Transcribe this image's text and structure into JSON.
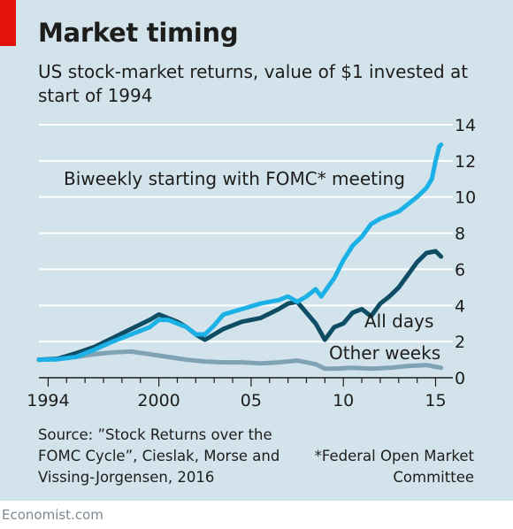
{
  "chart_data": {
    "type": "line",
    "title": "Market timing",
    "subtitle": "US stock-market returns, value of $1 invested at start of 1994",
    "xlim": [
      1993.5,
      2015.6
    ],
    "ylim": [
      0,
      14
    ],
    "y_ticks": [
      0,
      2,
      4,
      6,
      8,
      10,
      12,
      14
    ],
    "x_ticks": [
      {
        "value": 1994,
        "label": "1994"
      },
      {
        "value": 2000,
        "label": "2000"
      },
      {
        "value": 2005,
        "label": "05"
      },
      {
        "value": 2010,
        "label": "10"
      },
      {
        "value": 2015,
        "label": "15"
      }
    ],
    "grid": "horizontal",
    "series": [
      {
        "name": "Other weeks",
        "color": "#7fa3b5",
        "x": [
          1993.5,
          1994.5,
          1995.5,
          1996.5,
          1997.5,
          1998.5,
          1999.5,
          2000.5,
          2001.5,
          2002.5,
          2003.5,
          2004.5,
          2005.5,
          2006.5,
          2007.5,
          2008.5,
          2009.0,
          2009.5,
          2010.5,
          2011.5,
          2012.5,
          2013.5,
          2014.5,
          2015.3
        ],
        "values": [
          1.0,
          1.05,
          1.15,
          1.3,
          1.4,
          1.45,
          1.3,
          1.15,
          1.0,
          0.9,
          0.85,
          0.85,
          0.8,
          0.85,
          0.95,
          0.75,
          0.5,
          0.5,
          0.55,
          0.5,
          0.55,
          0.65,
          0.7,
          0.55
        ]
      },
      {
        "name": "All days",
        "color": "#0e4d63",
        "x": [
          1993.5,
          1994.5,
          1995.5,
          1996.5,
          1997.5,
          1998.5,
          1999.5,
          2000.0,
          2000.5,
          2001.0,
          2001.5,
          2002.0,
          2002.5,
          2003.0,
          2003.5,
          2004.5,
          2005.5,
          2006.5,
          2007.0,
          2007.5,
          2008.0,
          2008.5,
          2009.0,
          2009.5,
          2010.0,
          2010.5,
          2011.0,
          2011.5,
          2012.0,
          2012.5,
          2013.0,
          2013.5,
          2014.0,
          2014.5,
          2015.0,
          2015.3
        ],
        "values": [
          1.0,
          1.05,
          1.35,
          1.7,
          2.2,
          2.7,
          3.2,
          3.5,
          3.3,
          3.1,
          2.8,
          2.4,
          2.1,
          2.4,
          2.7,
          3.1,
          3.3,
          3.8,
          4.1,
          4.2,
          3.6,
          3.0,
          2.1,
          2.8,
          3.0,
          3.6,
          3.8,
          3.4,
          4.1,
          4.5,
          5.0,
          5.7,
          6.4,
          6.9,
          7.0,
          6.7
        ]
      },
      {
        "name": "Biweekly starting with FOMC* meeting",
        "color": "#1bb1e7",
        "x": [
          1993.5,
          1994.5,
          1995.5,
          1996.5,
          1997.5,
          1998.5,
          1999.5,
          2000.0,
          2000.5,
          2001.0,
          2001.5,
          2002.0,
          2002.5,
          2003.0,
          2003.5,
          2004.5,
          2005.5,
          2006.5,
          2007.0,
          2007.5,
          2008.0,
          2008.5,
          2008.8,
          2009.5,
          2010.0,
          2010.5,
          2011.0,
          2011.5,
          2012.0,
          2012.5,
          2013.0,
          2013.5,
          2014.0,
          2014.5,
          2014.8,
          2015.0,
          2015.2,
          2015.3
        ],
        "values": [
          1.0,
          1.02,
          1.15,
          1.55,
          2.0,
          2.4,
          2.8,
          3.2,
          3.2,
          3.0,
          2.8,
          2.4,
          2.4,
          2.9,
          3.5,
          3.8,
          4.1,
          4.3,
          4.5,
          4.2,
          4.5,
          4.9,
          4.5,
          5.5,
          6.5,
          7.3,
          7.8,
          8.5,
          8.8,
          9.0,
          9.2,
          9.6,
          10.0,
          10.5,
          11.0,
          12.0,
          12.8,
          12.9
        ]
      }
    ],
    "annotations": {
      "biweekly": "Biweekly starting with FOMC* meeting",
      "all_days": "All days",
      "other_weeks": "Other weeks"
    }
  },
  "source": "Source: ”Stock Returns over the FOMC Cycle”, Cieslak, Morse and Vissing-Jorgensen, 2016",
  "footnote": "*Federal Open Market Committee",
  "brand": "Economist.com"
}
